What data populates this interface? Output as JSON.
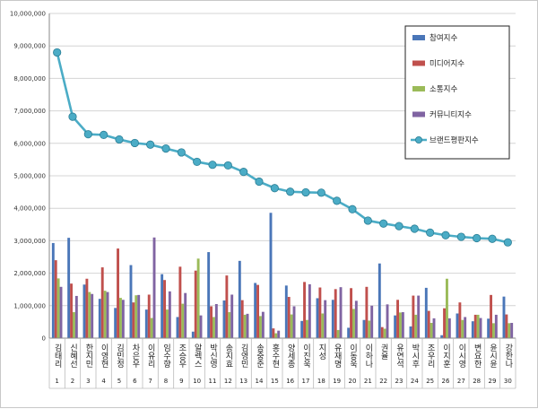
{
  "chart_data": {
    "type": "bar",
    "title": "",
    "xlabel": "",
    "ylabel": "",
    "ylim": [
      0,
      10000000
    ],
    "yticks": [
      0,
      1000000,
      2000000,
      3000000,
      4000000,
      5000000,
      6000000,
      7000000,
      8000000,
      9000000,
      10000000
    ],
    "ytick_labels": [
      "0",
      "1,000,000",
      "2,000,000",
      "3,000,000",
      "4,000,000",
      "5,000,000",
      "6,000,000",
      "7,000,000",
      "8,000,000",
      "9,000,000",
      "10,000,000"
    ],
    "grid": true,
    "legend_position": "top-right",
    "categories": [
      "김태리",
      "신혜선",
      "한지민",
      "이영현",
      "김민정",
      "차은우",
      "이유리",
      "임수향",
      "조승우",
      "알렉스",
      "박신영",
      "송지효",
      "김영민",
      "송중준",
      "홍수현",
      "양세종",
      "이진욱",
      "지성",
      "유재명",
      "이동욱",
      "이하나",
      "권율",
      "유연석",
      "박시후",
      "조우리",
      "이지훈",
      "이시영",
      "변요한",
      "윤시윤",
      "강한나"
    ],
    "category_numbers": [
      "1",
      "2",
      "3",
      "4",
      "5",
      "6",
      "7",
      "8",
      "9",
      "10",
      "11",
      "12",
      "13",
      "14",
      "15",
      "16",
      "17",
      "18",
      "19",
      "20",
      "21",
      "22",
      "23",
      "24",
      "25",
      "26",
      "27",
      "28",
      "29",
      "30"
    ],
    "series": [
      {
        "name": "참여지수",
        "kind": "bar",
        "color": "#4a76b8",
        "values": [
          2930000,
          3090000,
          1650000,
          1210000,
          930000,
          2250000,
          880000,
          1970000,
          650000,
          200000,
          2650000,
          1160000,
          2380000,
          1700000,
          3860000,
          1620000,
          530000,
          1230000,
          1180000,
          320000,
          560000,
          2300000,
          700000,
          360000,
          1550000,
          90000,
          760000,
          520000,
          600000,
          1280000
        ]
      },
      {
        "name": "미디어지수",
        "kind": "bar",
        "color": "#c0504d",
        "values": [
          2400000,
          1680000,
          1830000,
          2180000,
          2760000,
          1100000,
          1340000,
          1790000,
          2200000,
          2080000,
          980000,
          1930000,
          1170000,
          1640000,
          300000,
          1270000,
          1730000,
          1560000,
          1510000,
          1540000,
          1580000,
          340000,
          1180000,
          1310000,
          840000,
          920000,
          1100000,
          720000,
          1330000,
          730000
        ]
      },
      {
        "name": "소통지수",
        "kind": "bar",
        "color": "#9bbb59",
        "values": [
          1840000,
          800000,
          1420000,
          1460000,
          1240000,
          1320000,
          620000,
          880000,
          1060000,
          2450000,
          650000,
          800000,
          720000,
          680000,
          150000,
          730000,
          560000,
          760000,
          250000,
          900000,
          540000,
          290000,
          790000,
          720000,
          470000,
          1830000,
          560000,
          720000,
          460000,
          460000
        ]
      },
      {
        "name": "커뮤니티지수",
        "kind": "bar",
        "color": "#8064a2",
        "values": [
          1580000,
          1300000,
          1360000,
          1420000,
          1180000,
          1330000,
          3100000,
          1440000,
          1390000,
          700000,
          1050000,
          1340000,
          750000,
          810000,
          230000,
          980000,
          1660000,
          1170000,
          1570000,
          1150000,
          1000000,
          1040000,
          800000,
          1310000,
          610000,
          610000,
          650000,
          620000,
          720000,
          470000
        ]
      },
      {
        "name": "브랜드평판지수",
        "kind": "line",
        "color": "#4bacc6",
        "values": [
          8800000,
          6820000,
          6280000,
          6260000,
          6120000,
          6010000,
          5960000,
          5840000,
          5720000,
          5430000,
          5340000,
          5320000,
          5120000,
          4820000,
          4620000,
          4510000,
          4490000,
          4480000,
          4230000,
          3970000,
          3620000,
          3530000,
          3450000,
          3370000,
          3250000,
          3170000,
          3120000,
          3080000,
          3060000,
          2950000
        ]
      }
    ]
  }
}
